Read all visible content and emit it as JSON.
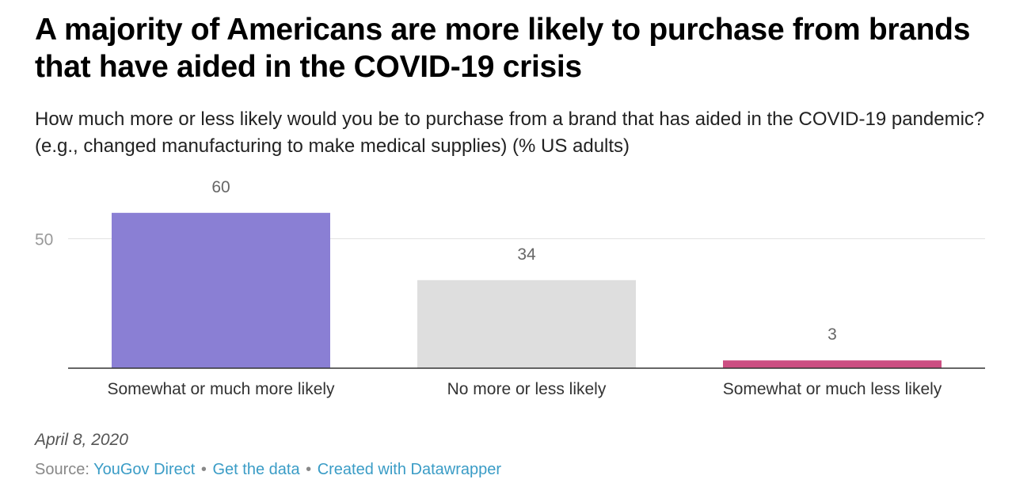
{
  "header": {
    "title": "A majority of Americans are more likely to purchase from brands that have aided in the COVID-19 crisis",
    "subtitle": "How much more or less likely would you be to purchase from a brand that has aided in the COVID-19 pandemic? (e.g., changed manufacturing to make medical supplies) (% US adults)"
  },
  "footer": {
    "date": "April 8, 2020",
    "source_label": "Source: ",
    "source_link": "YouGov Direct",
    "separator": "•",
    "data_link": "Get the data",
    "created_link": "Created with Datawrapper"
  },
  "chart_data": {
    "type": "bar",
    "title": "A majority of Americans are more likely to purchase from brands that have aided in the COVID-19 crisis",
    "subtitle": "How much more or less likely would you be to purchase from a brand that has aided in the COVID-19 pandemic? (e.g., changed manufacturing to make medical supplies) (% US adults)",
    "categories": [
      "Somewhat or much more likely",
      "No more or less likely",
      "Somewhat or much less likely"
    ],
    "values": [
      60,
      34,
      3
    ],
    "colors": [
      "#8a7fd4",
      "#dedede",
      "#cc4e82"
    ],
    "y_ticks": [
      50
    ],
    "ylim": [
      0,
      60
    ],
    "grid": true,
    "data_labels": true
  }
}
